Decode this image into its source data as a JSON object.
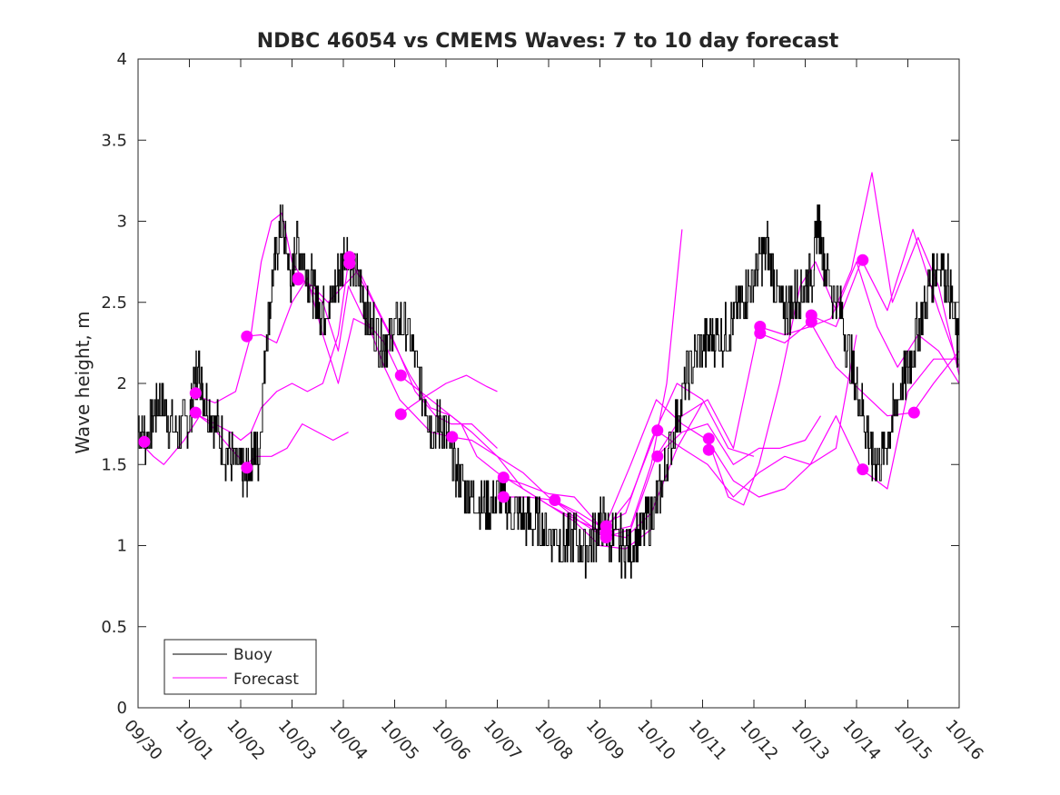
{
  "chart_data": {
    "type": "line",
    "title": "NDBC 46054 vs CMEMS Waves: 7 to 10 day forecast",
    "xlabel": "",
    "ylabel": "Wave height, m",
    "xlim": [
      0,
      16
    ],
    "ylim": [
      0,
      4
    ],
    "x_tick_labels": [
      "09/30",
      "10/01",
      "10/02",
      "10/03",
      "10/04",
      "10/05",
      "10/06",
      "10/07",
      "10/08",
      "10/09",
      "10/10",
      "10/11",
      "10/12",
      "10/13",
      "10/14",
      "10/15",
      "10/16"
    ],
    "y_ticks": [
      0,
      0.5,
      1,
      1.5,
      2,
      2.5,
      3,
      3.5,
      4
    ],
    "y_tick_labels": [
      "0",
      "0.5",
      "1",
      "1.5",
      "2",
      "2.5",
      "3",
      "3.5",
      "4"
    ],
    "legend": {
      "position": "bottom-left",
      "entries": [
        "Buoy",
        "Forecast"
      ]
    },
    "colors": {
      "buoy": "#000000",
      "forecast": "#ff00ff",
      "axes": "#262626"
    },
    "buoy": {
      "name": "Buoy",
      "x": [
        0,
        0.15,
        0.3,
        0.45,
        0.6,
        0.8,
        1.0,
        1.1,
        1.2,
        1.3,
        1.5,
        1.7,
        1.9,
        2.05,
        2.15,
        2.25,
        2.35,
        2.5,
        2.65,
        2.8,
        2.9,
        3.0,
        3.1,
        3.25,
        3.4,
        3.5,
        3.6,
        3.75,
        3.9,
        4.05,
        4.2,
        4.35,
        4.5,
        4.7,
        4.85,
        5.0,
        5.2,
        5.4,
        5.6,
        5.75,
        5.9,
        6.05,
        6.2,
        6.35,
        6.5,
        6.7,
        6.9,
        7.1,
        7.3,
        7.5,
        7.7,
        7.9,
        8.1,
        8.3,
        8.5,
        8.7,
        8.9,
        9.05,
        9.2,
        9.4,
        9.6,
        9.8,
        10.0,
        10.15,
        10.3,
        10.5,
        10.7,
        10.9,
        11.1,
        11.3,
        11.5,
        11.65,
        11.8,
        11.95,
        12.1,
        12.25,
        12.4,
        12.55,
        12.7,
        12.85,
        13.0,
        13.15,
        13.25,
        13.35,
        13.5,
        13.7,
        13.9,
        14.05,
        14.2,
        14.3,
        14.45,
        14.6,
        14.75,
        14.9,
        15.05,
        15.2,
        15.35,
        15.5,
        15.65,
        15.8,
        16.0
      ],
      "y": [
        1.75,
        1.65,
        1.8,
        1.9,
        1.75,
        1.7,
        1.8,
        2.0,
        2.1,
        1.9,
        1.75,
        1.6,
        1.5,
        1.45,
        1.45,
        1.6,
        1.55,
        2.3,
        2.7,
        3.0,
        2.8,
        2.6,
        2.9,
        2.75,
        2.6,
        2.5,
        2.45,
        2.5,
        2.65,
        2.85,
        2.7,
        2.55,
        2.4,
        2.3,
        2.25,
        2.35,
        2.4,
        2.1,
        1.9,
        1.7,
        1.75,
        1.65,
        1.45,
        1.35,
        1.3,
        1.25,
        1.25,
        1.3,
        1.2,
        1.15,
        1.15,
        1.1,
        1.05,
        1.0,
        1.05,
        0.98,
        1.05,
        1.15,
        1.05,
        1.0,
        0.98,
        1.1,
        1.2,
        1.3,
        1.5,
        1.8,
        2.05,
        2.2,
        2.25,
        2.3,
        2.3,
        2.45,
        2.55,
        2.6,
        2.75,
        2.85,
        2.65,
        2.45,
        2.5,
        2.55,
        2.6,
        2.7,
        3.0,
        2.8,
        2.6,
        2.45,
        2.1,
        1.9,
        1.7,
        1.55,
        1.5,
        1.65,
        1.85,
        2.0,
        2.15,
        2.35,
        2.5,
        2.7,
        2.75,
        2.6,
        2.15
      ]
    },
    "forecast": {
      "name": "Forecast",
      "series": [
        {
          "x": [
            0,
            0.3,
            0.5,
            0.9,
            1.2,
            1.5,
            1.8,
            2.0,
            2.2,
            2.4,
            2.7,
            3.0,
            3.3,
            3.6,
            3.9,
            4.1
          ],
          "y": [
            1.65,
            1.55,
            1.5,
            1.65,
            1.8,
            1.75,
            1.7,
            1.65,
            1.7,
            1.85,
            1.95,
            2.0,
            1.95,
            2.0,
            2.3,
            2.75
          ]
        },
        {
          "x": [
            1.1,
            1.5,
            1.9,
            2.2,
            2.4,
            2.6,
            2.8,
            3.0,
            3.3,
            3.6,
            3.9,
            4.1,
            4.4,
            4.8,
            5.1
          ],
          "y": [
            1.93,
            1.88,
            1.95,
            2.3,
            2.75,
            3.0,
            3.05,
            2.75,
            2.6,
            2.5,
            2.2,
            2.6,
            2.4,
            2.25,
            2.05
          ]
        },
        {
          "x": [
            1.1,
            1.4,
            1.8,
            2.1,
            2.3,
            2.6,
            2.9,
            3.2,
            3.5,
            3.8,
            4.1
          ],
          "y": [
            1.82,
            1.75,
            1.6,
            1.5,
            1.55,
            1.55,
            1.6,
            1.75,
            1.7,
            1.65,
            1.7
          ]
        },
        {
          "x": [
            2.1,
            2.4,
            2.7,
            3.0,
            3.3,
            3.6,
            3.9,
            4.2,
            4.5,
            4.8,
            5.1,
            5.4,
            5.7,
            6.1
          ],
          "y": [
            2.29,
            2.3,
            2.25,
            2.5,
            2.65,
            2.3,
            2.0,
            2.4,
            2.35,
            2.1,
            1.9,
            1.8,
            1.7,
            1.67
          ]
        },
        {
          "x": [
            3.1,
            3.4,
            3.7,
            4.0,
            4.3,
            4.6,
            5.0,
            5.4,
            5.8,
            6.1,
            6.5,
            7.0
          ],
          "y": [
            2.65,
            2.6,
            2.5,
            2.6,
            2.7,
            2.5,
            2.25,
            1.95,
            1.8,
            1.75,
            1.75,
            1.6
          ]
        },
        {
          "x": [
            4.1,
            4.5,
            4.9,
            5.3,
            5.7,
            6.1,
            6.5,
            7.0,
            7.5,
            8.0,
            8.5,
            9.0,
            9.5,
            10.0
          ],
          "y": [
            2.78,
            2.55,
            2.3,
            2.05,
            1.85,
            1.8,
            1.7,
            1.55,
            1.35,
            1.25,
            1.15,
            1.0,
            0.98,
            1.1
          ]
        },
        {
          "x": [
            5.1,
            5.5,
            5.9,
            6.3,
            6.6,
            7.0,
            7.5,
            8.0,
            8.6,
            9.1,
            9.6,
            10.0,
            10.3,
            10.6
          ],
          "y": [
            2.05,
            1.95,
            1.85,
            1.75,
            1.55,
            1.45,
            1.35,
            1.25,
            1.15,
            1.08,
            1.12,
            1.5,
            2.0,
            2.95
          ]
        },
        {
          "x": [
            5.1,
            5.5,
            6.0,
            6.4,
            6.8,
            7.0
          ],
          "y": [
            1.81,
            1.9,
            2.0,
            2.05,
            1.98,
            1.95
          ]
        },
        {
          "x": [
            6.1,
            6.5,
            7.0,
            7.5,
            8.0,
            8.5,
            9.0,
            9.5,
            10.0,
            10.5,
            11.0
          ],
          "y": [
            1.67,
            1.65,
            1.55,
            1.45,
            1.3,
            1.2,
            1.08,
            1.05,
            1.2,
            1.6,
            1.88
          ]
        },
        {
          "x": [
            7.1,
            7.5,
            8.0,
            8.5,
            9.0,
            9.5,
            10.0,
            10.5,
            11.0,
            11.5,
            12.0
          ],
          "y": [
            1.42,
            1.38,
            1.32,
            1.3,
            1.12,
            1.2,
            1.65,
            2.0,
            1.9,
            1.6,
            1.55
          ]
        },
        {
          "x": [
            7.1,
            7.6,
            8.1,
            8.6,
            9.1,
            9.6,
            10.1,
            10.6,
            11.1,
            11.6,
            12.1,
            12.5,
            13.0,
            13.3
          ],
          "y": [
            1.3,
            1.3,
            1.28,
            1.15,
            1.05,
            1.1,
            1.55,
            1.7,
            1.75,
            1.5,
            1.6,
            1.6,
            1.65,
            1.8
          ]
        },
        {
          "x": [
            8.1,
            8.6,
            9.1,
            9.6,
            10.1,
            10.6,
            11.1,
            11.6,
            12.1,
            12.6,
            13.1,
            13.6,
            14.0
          ],
          "y": [
            1.28,
            1.2,
            1.1,
            1.3,
            1.71,
            1.6,
            1.5,
            1.3,
            1.45,
            1.55,
            1.5,
            1.6,
            2.3
          ]
        },
        {
          "x": [
            9.1,
            9.6,
            10.1,
            10.6,
            11.1,
            11.6,
            12.1,
            12.6,
            13.1,
            13.6,
            14.1,
            14.6,
            15.0,
            15.5,
            16.0
          ],
          "y": [
            1.12,
            1.5,
            1.9,
            1.75,
            1.65,
            1.4,
            1.3,
            1.35,
            1.5,
            1.8,
            1.47,
            1.35,
            1.95,
            2.15,
            2.15
          ]
        },
        {
          "x": [
            10.1,
            10.6,
            11.1,
            11.6,
            12.1,
            12.6,
            13.1,
            13.5,
            13.9,
            14.3,
            14.7,
            15.2,
            15.6,
            16.0
          ],
          "y": [
            1.55,
            1.8,
            1.9,
            1.6,
            2.35,
            2.3,
            2.35,
            2.4,
            2.7,
            3.3,
            2.5,
            2.9,
            2.6,
            2.05
          ]
        },
        {
          "x": [
            11.1,
            11.5,
            11.8,
            12.1,
            12.5,
            12.9,
            13.2,
            13.6,
            14.0,
            14.4,
            14.8,
            15.2,
            15.6,
            16.0
          ],
          "y": [
            1.66,
            1.3,
            1.25,
            1.5,
            2.0,
            2.6,
            2.75,
            2.45,
            2.75,
            2.35,
            2.1,
            2.3,
            2.2,
            2.0
          ]
        },
        {
          "x": [
            12.1,
            12.6,
            13.1,
            13.6,
            14.1,
            14.6,
            15.1,
            15.5,
            16.0
          ],
          "y": [
            2.31,
            2.25,
            2.38,
            2.1,
            1.95,
            1.8,
            1.82,
            2.0,
            2.2
          ]
        },
        {
          "x": [
            13.1,
            13.6,
            14.1,
            14.6,
            15.1,
            15.6,
            16.0
          ],
          "y": [
            2.42,
            2.35,
            2.76,
            2.45,
            2.95,
            2.45,
            2.1
          ]
        }
      ],
      "markers": [
        {
          "x": 0.12,
          "y": 1.64
        },
        {
          "x": 1.12,
          "y": 1.94
        },
        {
          "x": 1.12,
          "y": 1.82
        },
        {
          "x": 2.12,
          "y": 2.29
        },
        {
          "x": 2.12,
          "y": 1.48
        },
        {
          "x": 3.12,
          "y": 2.65
        },
        {
          "x": 3.12,
          "y": 2.64
        },
        {
          "x": 4.12,
          "y": 2.78
        },
        {
          "x": 4.12,
          "y": 2.74
        },
        {
          "x": 5.12,
          "y": 2.05
        },
        {
          "x": 5.12,
          "y": 1.81
        },
        {
          "x": 6.12,
          "y": 1.67
        },
        {
          "x": 7.12,
          "y": 1.42
        },
        {
          "x": 7.12,
          "y": 1.3
        },
        {
          "x": 8.12,
          "y": 1.28
        },
        {
          "x": 9.12,
          "y": 1.12
        },
        {
          "x": 9.12,
          "y": 1.08
        },
        {
          "x": 9.12,
          "y": 1.05
        },
        {
          "x": 10.12,
          "y": 1.71
        },
        {
          "x": 10.12,
          "y": 1.55
        },
        {
          "x": 11.12,
          "y": 1.66
        },
        {
          "x": 11.12,
          "y": 1.59
        },
        {
          "x": 12.12,
          "y": 2.35
        },
        {
          "x": 12.12,
          "y": 2.31
        },
        {
          "x": 13.12,
          "y": 2.42
        },
        {
          "x": 13.12,
          "y": 2.38
        },
        {
          "x": 14.12,
          "y": 2.76
        },
        {
          "x": 14.12,
          "y": 1.47
        },
        {
          "x": 15.12,
          "y": 1.82
        }
      ]
    }
  }
}
